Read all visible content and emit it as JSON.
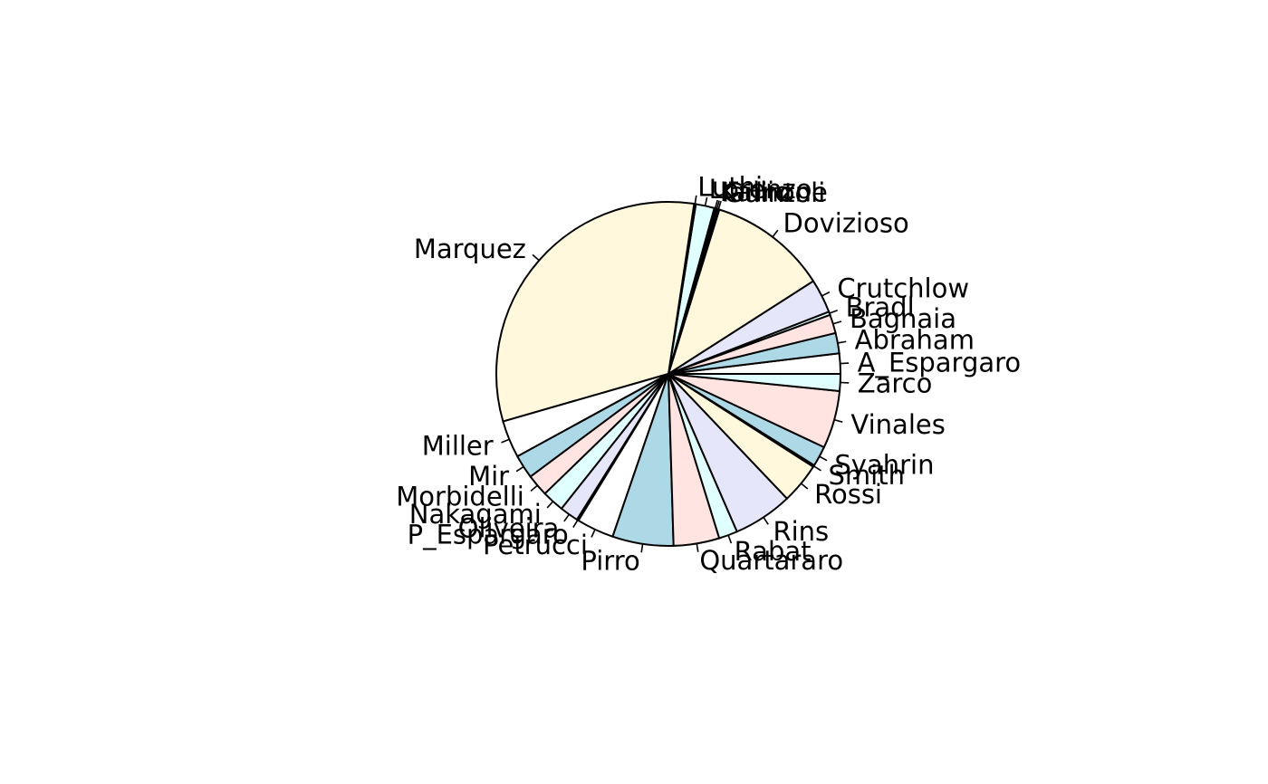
{
  "chart_data": {
    "type": "pie",
    "title": "",
    "start_angle_deg": 0,
    "direction": "counterclockwise",
    "palette": [
      "#FFFFFF",
      "#ADD8E6",
      "#FFE4E1",
      "#E0FFFF",
      "#E6E6FA",
      "#FFF8DC"
    ],
    "border_color": "#000000",
    "slices": [
      {
        "label": "A_Espargaro",
        "value": 12
      },
      {
        "label": "Abraham",
        "value": 12
      },
      {
        "label": "Bagnaia",
        "value": 11
      },
      {
        "label": "Bradl",
        "value": 2
      },
      {
        "label": "Crutchlow",
        "value": 20
      },
      {
        "label": "Dovizioso",
        "value": 70
      },
      {
        "label": "Guintoli",
        "value": 1
      },
      {
        "label": "Iannone",
        "value": 1
      },
      {
        "label": "Kallio",
        "value": 1
      },
      {
        "label": "Lorenzo",
        "value": 11
      },
      {
        "label": "Luthi",
        "value": 1
      },
      {
        "label": "Marquez",
        "value": 200
      },
      {
        "label": "Miller",
        "value": 22
      },
      {
        "label": "Mir",
        "value": 14
      },
      {
        "label": "Morbidelli",
        "value": 13
      },
      {
        "label": "Nakagami",
        "value": 13
      },
      {
        "label": "Oliveira",
        "value": 11
      },
      {
        "label": "P_Espargaro",
        "value": 1
      },
      {
        "label": "Petrucci",
        "value": 22
      },
      {
        "label": "Pirro",
        "value": 36
      },
      {
        "label": "Quartararo",
        "value": 27
      },
      {
        "label": "Rabat",
        "value": 11
      },
      {
        "label": "Rins",
        "value": 35
      },
      {
        "label": "Rossi",
        "value": 24
      },
      {
        "label": "Smith",
        "value": 1
      },
      {
        "label": "Syahrin",
        "value": 12
      },
      {
        "label": "Vinales",
        "value": 34
      },
      {
        "label": "Zarco",
        "value": 10
      }
    ]
  }
}
